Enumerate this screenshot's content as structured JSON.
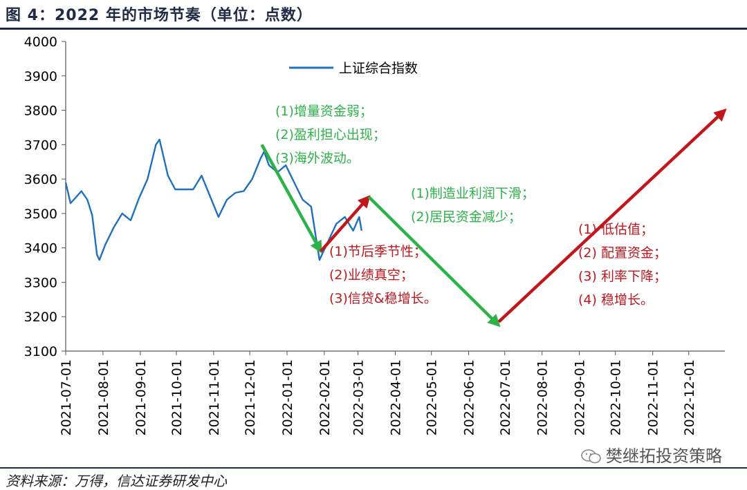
{
  "header": {
    "title": "图 4：2022 年的市场节奏（单位：点数）"
  },
  "footer": {
    "source": "资料来源：万得，信达证券研发中心",
    "watermark": "樊继拓投资策略"
  },
  "colors": {
    "series": "#1f6fbf",
    "green": "#2db24a",
    "red": "#c0161c",
    "frame": "#1f2a44"
  },
  "chart_data": {
    "type": "line",
    "title": "",
    "xlabel": "",
    "ylabel": "",
    "ylim": [
      3100,
      4000
    ],
    "yticks": [
      3100,
      3200,
      3300,
      3400,
      3500,
      3600,
      3700,
      3800,
      3900,
      4000
    ],
    "xticks": [
      "2021-07-01",
      "2021-08-01",
      "2021-09-01",
      "2021-10-01",
      "2021-11-01",
      "2021-12-01",
      "2022-01-01",
      "2022-02-01",
      "2022-03-01",
      "2022-04-01",
      "2022-05-01",
      "2022-06-01",
      "2022-07-01",
      "2022-08-01",
      "2022-09-01",
      "2022-10-01",
      "2022-11-01",
      "2022-12-01"
    ],
    "xlim": [
      "2021-07-01",
      "2022-12-31"
    ],
    "legend": {
      "position": "top-center",
      "label": "上证综合指数"
    },
    "series": [
      {
        "name": "上证综合指数",
        "x": [
          "2021-07-01",
          "2021-07-05",
          "2021-07-09",
          "2021-07-14",
          "2021-07-19",
          "2021-07-23",
          "2021-07-27",
          "2021-07-29",
          "2021-08-03",
          "2021-08-10",
          "2021-08-17",
          "2021-08-24",
          "2021-08-31",
          "2021-09-07",
          "2021-09-14",
          "2021-09-17",
          "2021-09-24",
          "2021-09-30",
          "2021-10-15",
          "2021-10-22",
          "2021-10-29",
          "2021-11-05",
          "2021-11-12",
          "2021-11-19",
          "2021-11-26",
          "2021-12-03",
          "2021-12-10",
          "2021-12-13",
          "2021-12-17",
          "2021-12-24",
          "2021-12-31",
          "2022-01-07",
          "2022-01-14",
          "2022-01-21",
          "2022-01-28",
          "2022-02-07",
          "2022-02-11",
          "2022-02-18",
          "2022-02-25",
          "2022-03-02",
          "2022-03-04"
        ],
        "values": [
          3590,
          3530,
          3545,
          3565,
          3540,
          3495,
          3380,
          3365,
          3410,
          3460,
          3500,
          3480,
          3545,
          3600,
          3700,
          3715,
          3610,
          3570,
          3570,
          3610,
          3550,
          3490,
          3540,
          3560,
          3565,
          3600,
          3660,
          3680,
          3640,
          3620,
          3640,
          3590,
          3540,
          3520,
          3365,
          3440,
          3470,
          3490,
          3450,
          3490,
          3450
        ]
      }
    ],
    "arrows": [
      {
        "color": "green",
        "from": [
          "2021-12-11",
          3700
        ],
        "to": [
          "2022-01-29",
          3390
        ]
      },
      {
        "color": "red",
        "from": [
          "2022-01-29",
          3390
        ],
        "to": [
          "2022-03-10",
          3548
        ]
      },
      {
        "color": "green",
        "from": [
          "2022-03-10",
          3548
        ],
        "to": [
          "2022-06-26",
          3175
        ]
      },
      {
        "color": "red",
        "from": [
          "2022-06-26",
          3185
        ],
        "to": [
          "2022-12-31",
          3800
        ]
      }
    ],
    "annotations": [
      {
        "color": "green",
        "lines": [
          "(1)增量资金弱；",
          "(2)盈利担心出现；",
          "(3)海外波动。"
        ]
      },
      {
        "color": "green",
        "lines": [
          "(1)制造业利润下滑；",
          "(2)居民资金减少；"
        ]
      },
      {
        "color": "red",
        "lines": [
          "(1)节后季节性；",
          "(2)业绩真空；",
          "(3)信贷&稳增长。"
        ]
      },
      {
        "color": "red",
        "lines": [
          "(1)  低估值；",
          "(2)  配置资金；",
          "(3)  利率下降；",
          "(4)  稳增长。"
        ]
      }
    ]
  }
}
